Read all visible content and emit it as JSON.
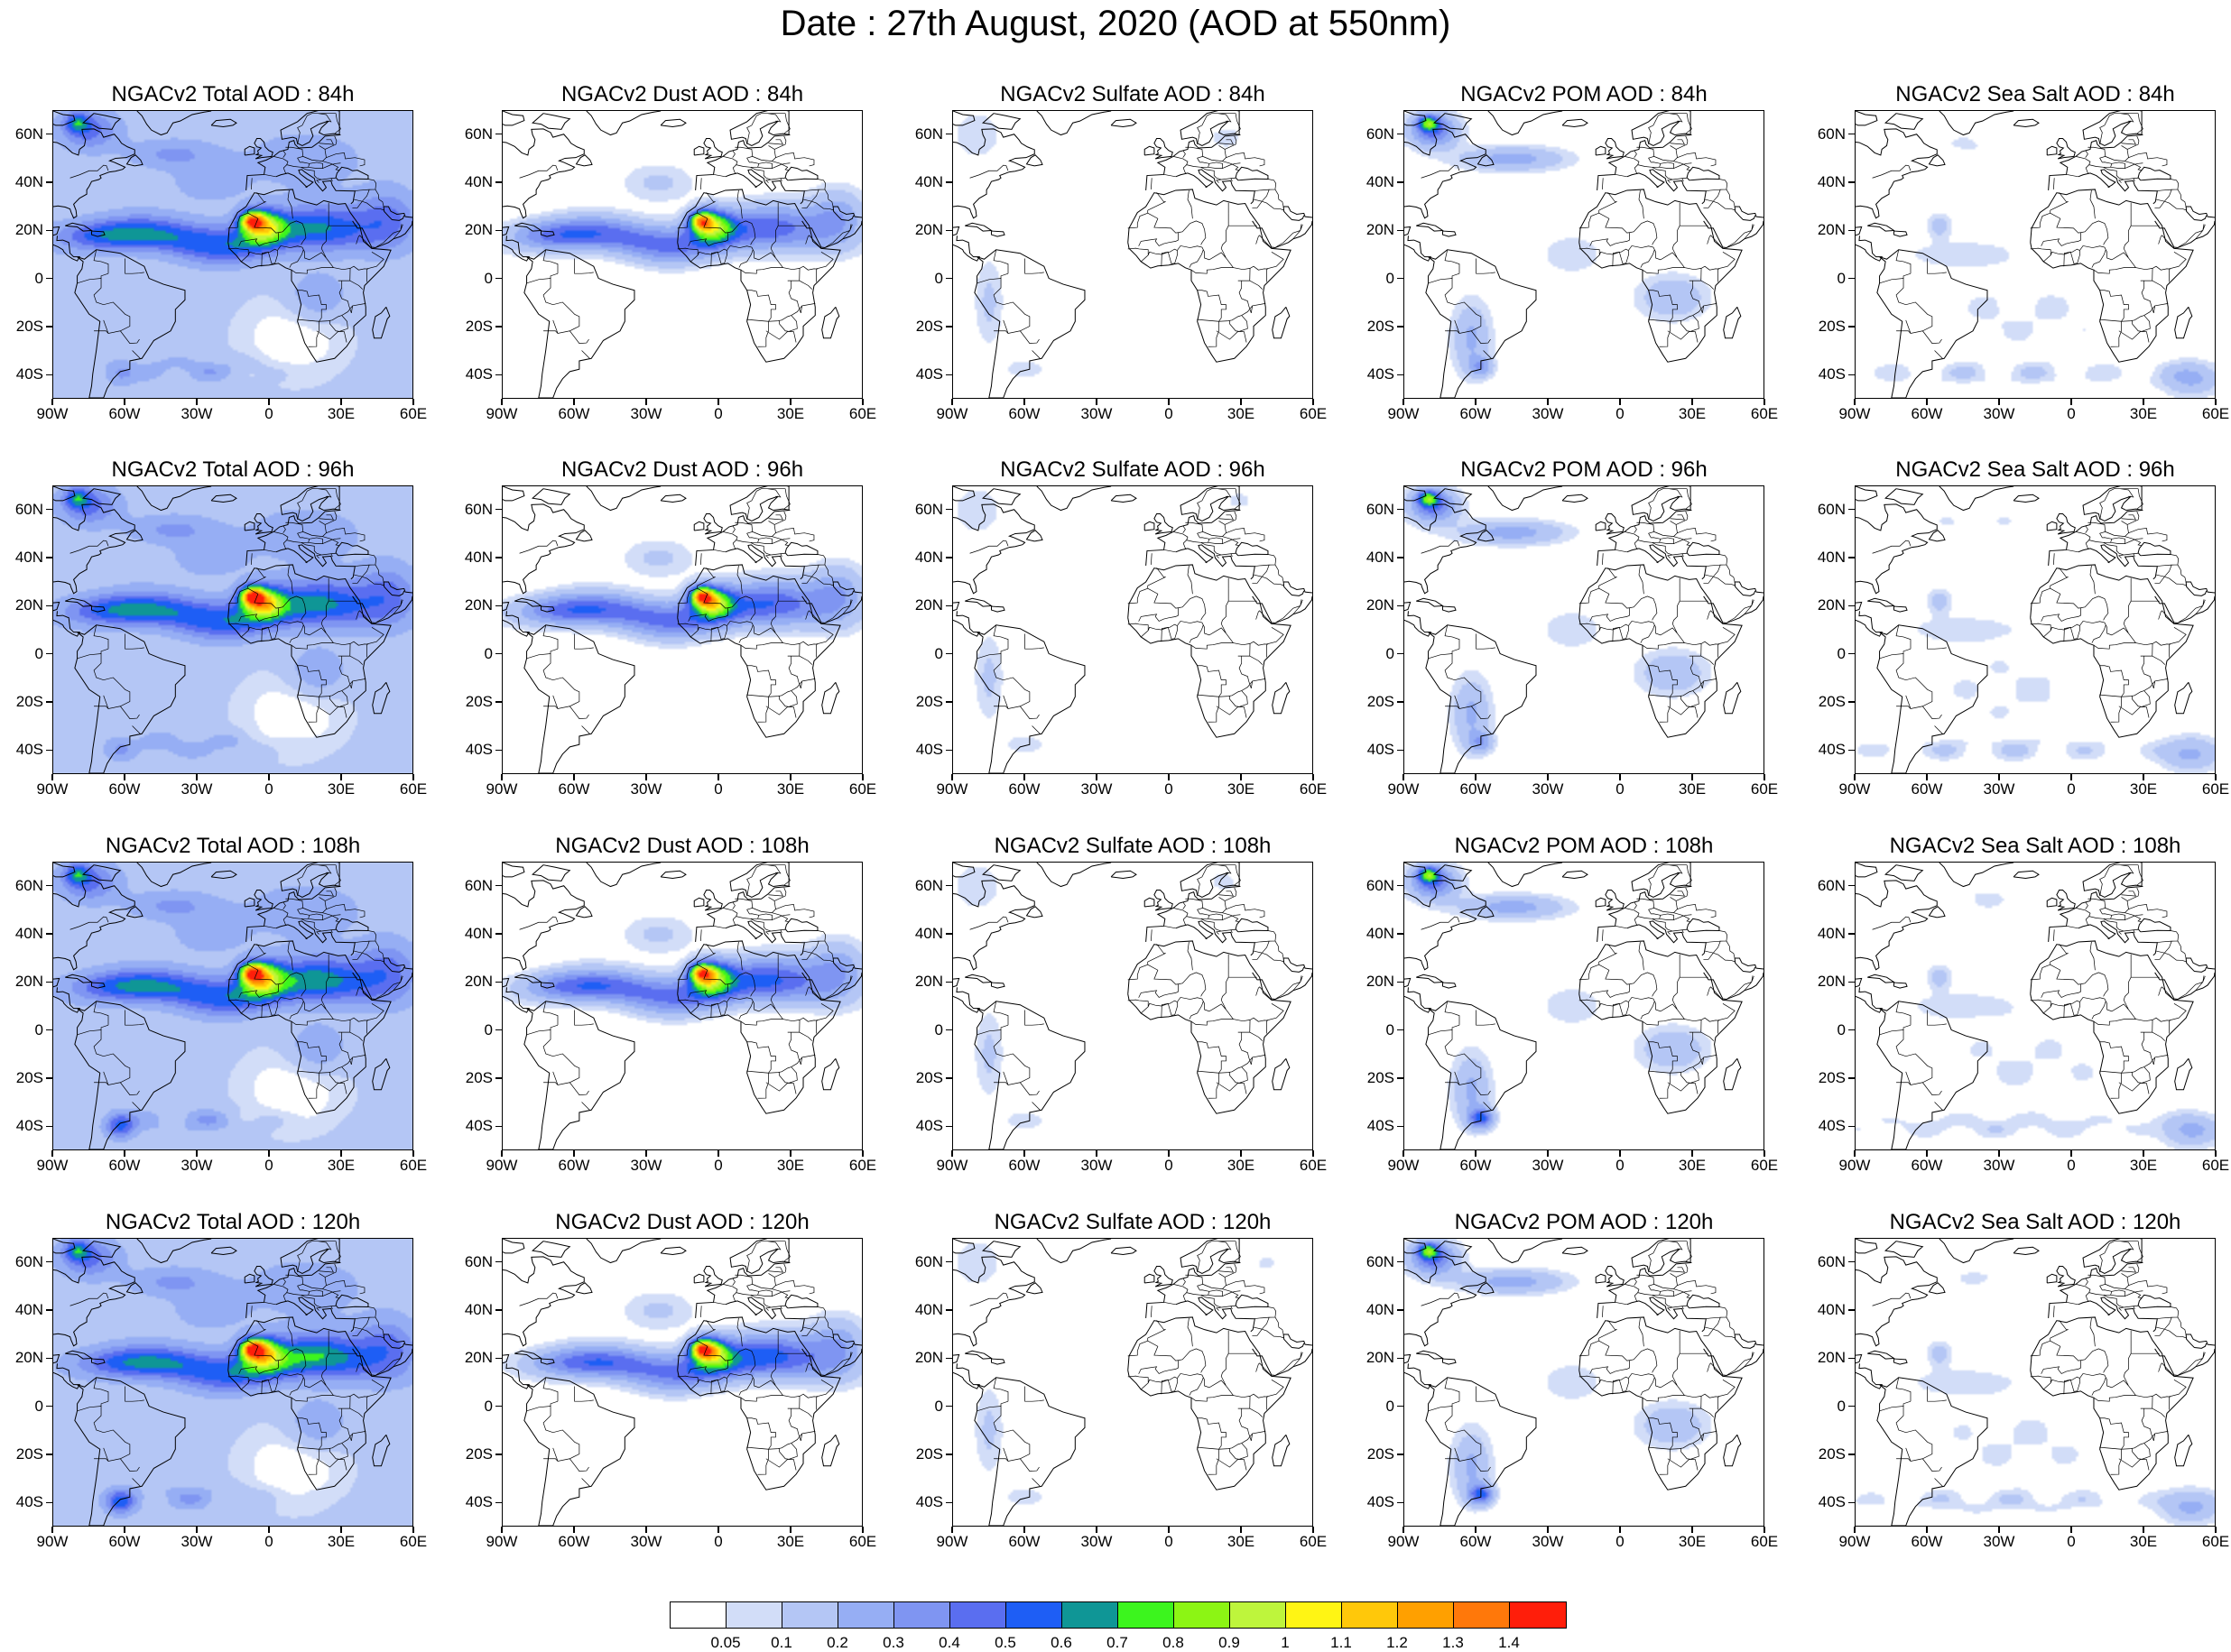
{
  "title": "Date : 27th August, 2020 (AOD at 550nm)",
  "lat_labels": [
    "60N",
    "40N",
    "20N",
    "0",
    "20S",
    "40S"
  ],
  "lat_values": [
    60,
    40,
    20,
    0,
    -20,
    -40
  ],
  "lon_labels": [
    "90W",
    "60W",
    "30W",
    "0",
    "30E",
    "60E"
  ],
  "lon_values": [
    -90,
    -60,
    -30,
    0,
    30,
    60
  ],
  "extent": {
    "lon": [
      -90,
      60
    ],
    "lat": [
      -50,
      70
    ]
  },
  "panels": [
    {
      "title": "NGACv2 Total AOD : 84h",
      "species": "total",
      "lead": 84
    },
    {
      "title": "NGACv2 Dust AOD : 84h",
      "species": "dust",
      "lead": 84
    },
    {
      "title": "NGACv2 Sulfate AOD : 84h",
      "species": "sulfate",
      "lead": 84
    },
    {
      "title": "NGACv2 POM AOD : 84h",
      "species": "pom",
      "lead": 84
    },
    {
      "title": "NGACv2 Sea Salt AOD : 84h",
      "species": "seasalt",
      "lead": 84
    },
    {
      "title": "NGACv2 Total AOD : 96h",
      "species": "total",
      "lead": 96
    },
    {
      "title": "NGACv2 Dust AOD : 96h",
      "species": "dust",
      "lead": 96
    },
    {
      "title": "NGACv2 Sulfate AOD : 96h",
      "species": "sulfate",
      "lead": 96
    },
    {
      "title": "NGACv2 POM AOD : 96h",
      "species": "pom",
      "lead": 96
    },
    {
      "title": "NGACv2 Sea Salt AOD : 96h",
      "species": "seasalt",
      "lead": 96
    },
    {
      "title": "NGACv2 Total AOD : 108h",
      "species": "total",
      "lead": 108
    },
    {
      "title": "NGACv2 Dust AOD : 108h",
      "species": "dust",
      "lead": 108
    },
    {
      "title": "NGACv2 Sulfate AOD : 108h",
      "species": "sulfate",
      "lead": 108
    },
    {
      "title": "NGACv2 POM AOD : 108h",
      "species": "pom",
      "lead": 108
    },
    {
      "title": "NGACv2 Sea Salt AOD : 108h",
      "species": "seasalt",
      "lead": 108
    },
    {
      "title": "NGACv2 Total AOD : 120h",
      "species": "total",
      "lead": 120
    },
    {
      "title": "NGACv2 Dust AOD : 120h",
      "species": "dust",
      "lead": 120
    },
    {
      "title": "NGACv2 Sulfate AOD : 120h",
      "species": "sulfate",
      "lead": 120
    },
    {
      "title": "NGACv2 POM AOD : 120h",
      "species": "pom",
      "lead": 120
    },
    {
      "title": "NGACv2 Sea Salt  AOD : 120h",
      "species": "seasalt",
      "lead": 120
    }
  ],
  "colorbar": {
    "labels": [
      "0.05",
      "0.1",
      "0.2",
      "0.3",
      "0.4",
      "0.5",
      "0.6",
      "0.7",
      "0.8",
      "0.9",
      "1",
      "1.1",
      "1.2",
      "1.3",
      "1.4"
    ],
    "colors": [
      "#ffffff",
      "#d2ddf8",
      "#b4c6f5",
      "#96aef4",
      "#7f95f2",
      "#5a6ef0",
      "#1e5ef5",
      "#0f9696",
      "#3cf51e",
      "#8cf514",
      "#bef53c",
      "#fff514",
      "#ffc80a",
      "#ffa000",
      "#ff780a",
      "#ff1e0a"
    ]
  }
}
